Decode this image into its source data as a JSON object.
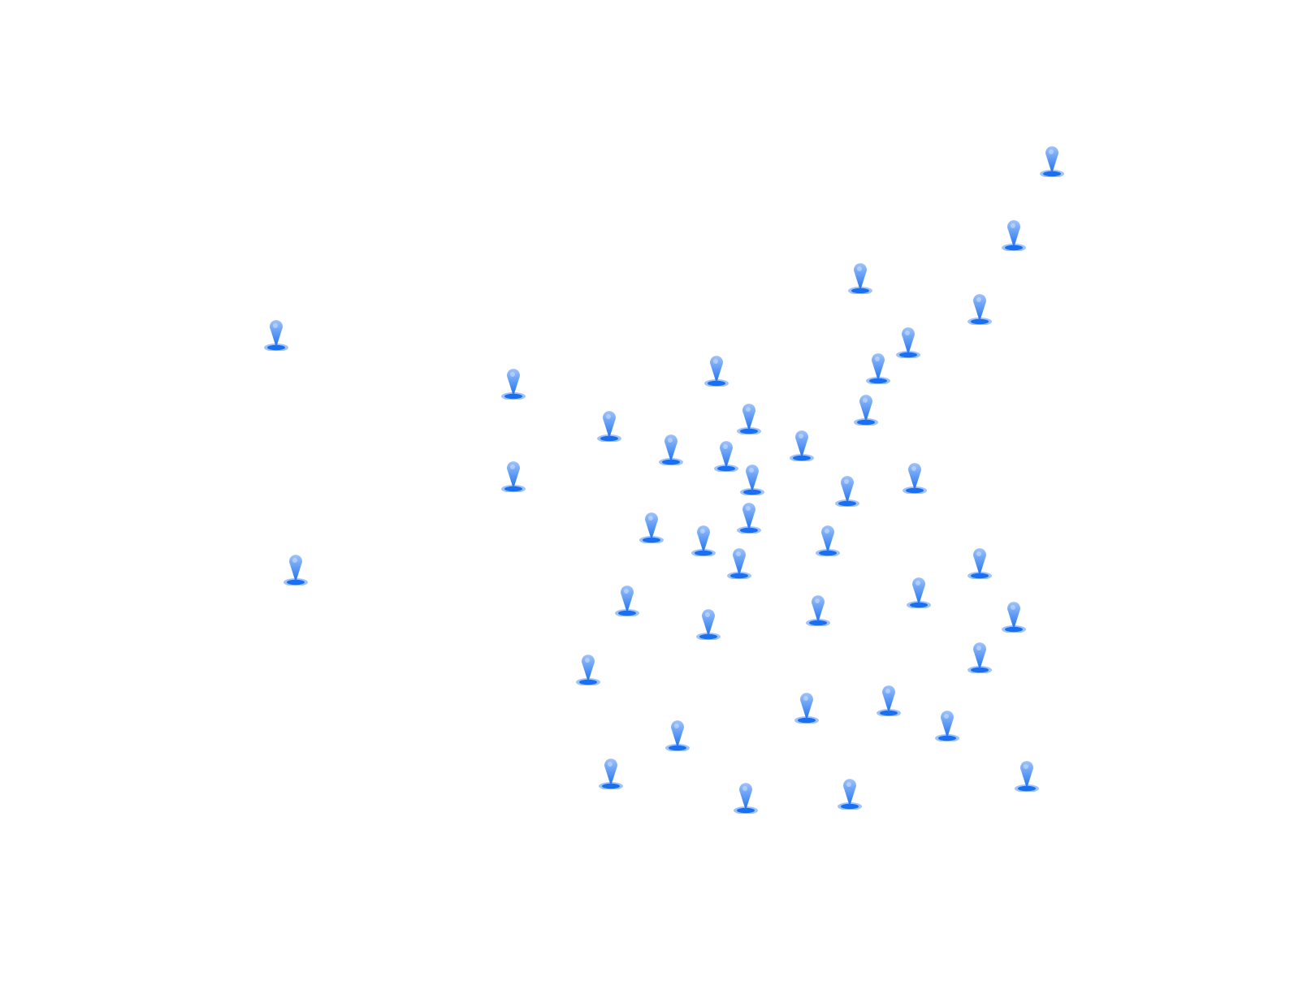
{
  "map": {
    "marker_icon": "map-pin-icon",
    "marker_color": "#1a6ff0",
    "marker_light_color": "#9fc3fa"
  }
}
